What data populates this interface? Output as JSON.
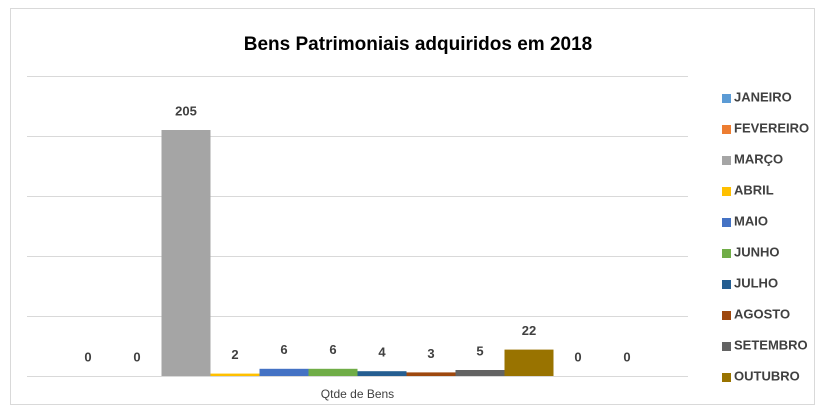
{
  "chart_data": {
    "type": "bar",
    "title": "Bens Patrimoniais adquiridos em 2018",
    "categories": [
      "Qtde de Bens"
    ],
    "series": [
      {
        "name": "JANEIRO",
        "color": "#5b9bd5",
        "values": [
          0
        ]
      },
      {
        "name": "FEVEREIRO",
        "color": "#ed7d31",
        "values": [
          0
        ]
      },
      {
        "name": "MARÇO",
        "color": "#a5a5a5",
        "values": [
          205
        ]
      },
      {
        "name": "ABRIL",
        "color": "#ffc000",
        "values": [
          2
        ]
      },
      {
        "name": "MAIO",
        "color": "#4472c4",
        "values": [
          6
        ]
      },
      {
        "name": "JUNHO",
        "color": "#70ad47",
        "values": [
          6
        ]
      },
      {
        "name": "JULHO",
        "color": "#255e91",
        "values": [
          4
        ]
      },
      {
        "name": "AGOSTO",
        "color": "#9e480e",
        "values": [
          3
        ]
      },
      {
        "name": "SETEMBRO",
        "color": "#636363",
        "values": [
          5
        ]
      },
      {
        "name": "OUTUBRO",
        "color": "#997300",
        "values": [
          22
        ]
      },
      {
        "name": null,
        "color": "#264478",
        "values": [
          0
        ]
      },
      {
        "name": null,
        "color": "#43682b",
        "values": [
          0
        ]
      }
    ],
    "ylim": [
      0,
      250
    ],
    "yticks": [
      0,
      50,
      100,
      150,
      200,
      250
    ],
    "grid": true,
    "show_tick_labels": false,
    "legend": "right"
  }
}
